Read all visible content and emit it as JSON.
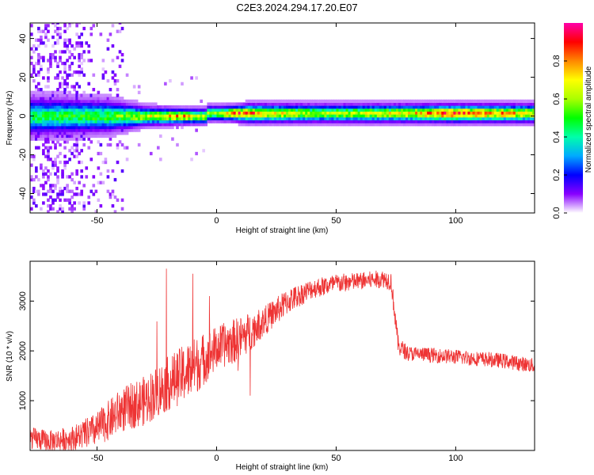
{
  "title": "C2E3.2024.294.17.20.E07",
  "colors": {
    "snr_line": "#ee3333",
    "background": "#ffffff",
    "axis": "#000000"
  },
  "chart_data": [
    {
      "type": "heatmap",
      "xlabel": "Height of straight line (km)",
      "ylabel": "Frequency (Hz)",
      "xlim": [
        -78,
        133
      ],
      "ylim": [
        -50,
        48
      ],
      "x_ticks": [
        -50,
        0,
        50,
        100
      ],
      "y_ticks": [
        -40,
        -20,
        0,
        20,
        40
      ],
      "colorbar": {
        "label": "Normalized spectral amplitude",
        "range": [
          0.0,
          1.0
        ],
        "ticks": [
          0.0,
          0.2,
          0.4,
          0.6,
          0.8
        ],
        "tick_labels": [
          "0.0",
          "0.2",
          "0.4",
          "0.6",
          "0.8"
        ],
        "colormap": [
          "#ffffff",
          "#8800ff",
          "#0000ff",
          "#00aaff",
          "#00ffaa",
          "#00ff00",
          "#aaff00",
          "#ffff00",
          "#ff8800",
          "#ff0000",
          "#ff00aa"
        ]
      },
      "band_center_hz": 0,
      "band_features": [
        {
          "x": -78,
          "halfwidth_hz": 6,
          "peak": 0.45
        },
        {
          "x": -45,
          "halfwidth_hz": 5,
          "peak": 0.5
        },
        {
          "x": -30,
          "halfwidth_hz": 3,
          "peak": 0.65
        },
        {
          "x": -15,
          "halfwidth_hz": 2.5,
          "peak": 0.8
        },
        {
          "x": 0,
          "halfwidth_hz": 2.5,
          "peak": 0.55
        },
        {
          "x": 7,
          "halfwidth_hz": 2.5,
          "peak": 0.85
        },
        {
          "x": 13,
          "halfwidth_hz": 3,
          "peak": 0.85
        },
        {
          "x": 40,
          "halfwidth_hz": 3,
          "peak": 0.6
        },
        {
          "x": 80,
          "halfwidth_hz": 3,
          "peak": 0.7
        },
        {
          "x": 97,
          "halfwidth_hz": 3,
          "peak": 0.9
        },
        {
          "x": 115,
          "halfwidth_hz": 3,
          "peak": 0.8
        },
        {
          "x": 133,
          "halfwidth_hz": 3,
          "peak": 0.7
        }
      ],
      "scatter_region_x": [
        -78,
        -40
      ],
      "scatter_region_y": [
        -50,
        48
      ]
    },
    {
      "type": "line",
      "xlabel": "Height of straight line (km)",
      "ylabel": "SNR (10 * v/v)",
      "xlim": [
        -78,
        133
      ],
      "ylim": [
        0,
        3800
      ],
      "x_ticks": [
        -50,
        0,
        50,
        100
      ],
      "y_ticks": [
        1000,
        2000,
        3000
      ],
      "series": [
        {
          "trend_x": [
            -78,
            -70,
            -60,
            -50,
            -40,
            -30,
            -20,
            -10,
            0,
            10,
            20,
            30,
            40,
            50,
            60,
            70,
            73,
            76,
            80,
            100,
            120,
            133
          ],
          "trend_y": [
            250,
            180,
            250,
            420,
            800,
            1000,
            1350,
            1650,
            2050,
            2250,
            2600,
            3000,
            3250,
            3350,
            3400,
            3450,
            3400,
            2100,
            1950,
            1880,
            1800,
            1700
          ],
          "noise_amplitude": [
            220,
            220,
            250,
            350,
            450,
            500,
            550,
            600,
            450,
            450,
            300,
            260,
            200,
            200,
            180,
            180,
            200,
            200,
            150,
            150,
            150,
            150
          ]
        }
      ],
      "spikes": [
        {
          "x": -21,
          "y": 3650
        },
        {
          "x": -10,
          "y": 3550
        },
        {
          "x": 14,
          "y": 1100
        },
        {
          "x": 9,
          "y": 1600
        },
        {
          "x": -3,
          "y": 3100
        }
      ]
    }
  ]
}
